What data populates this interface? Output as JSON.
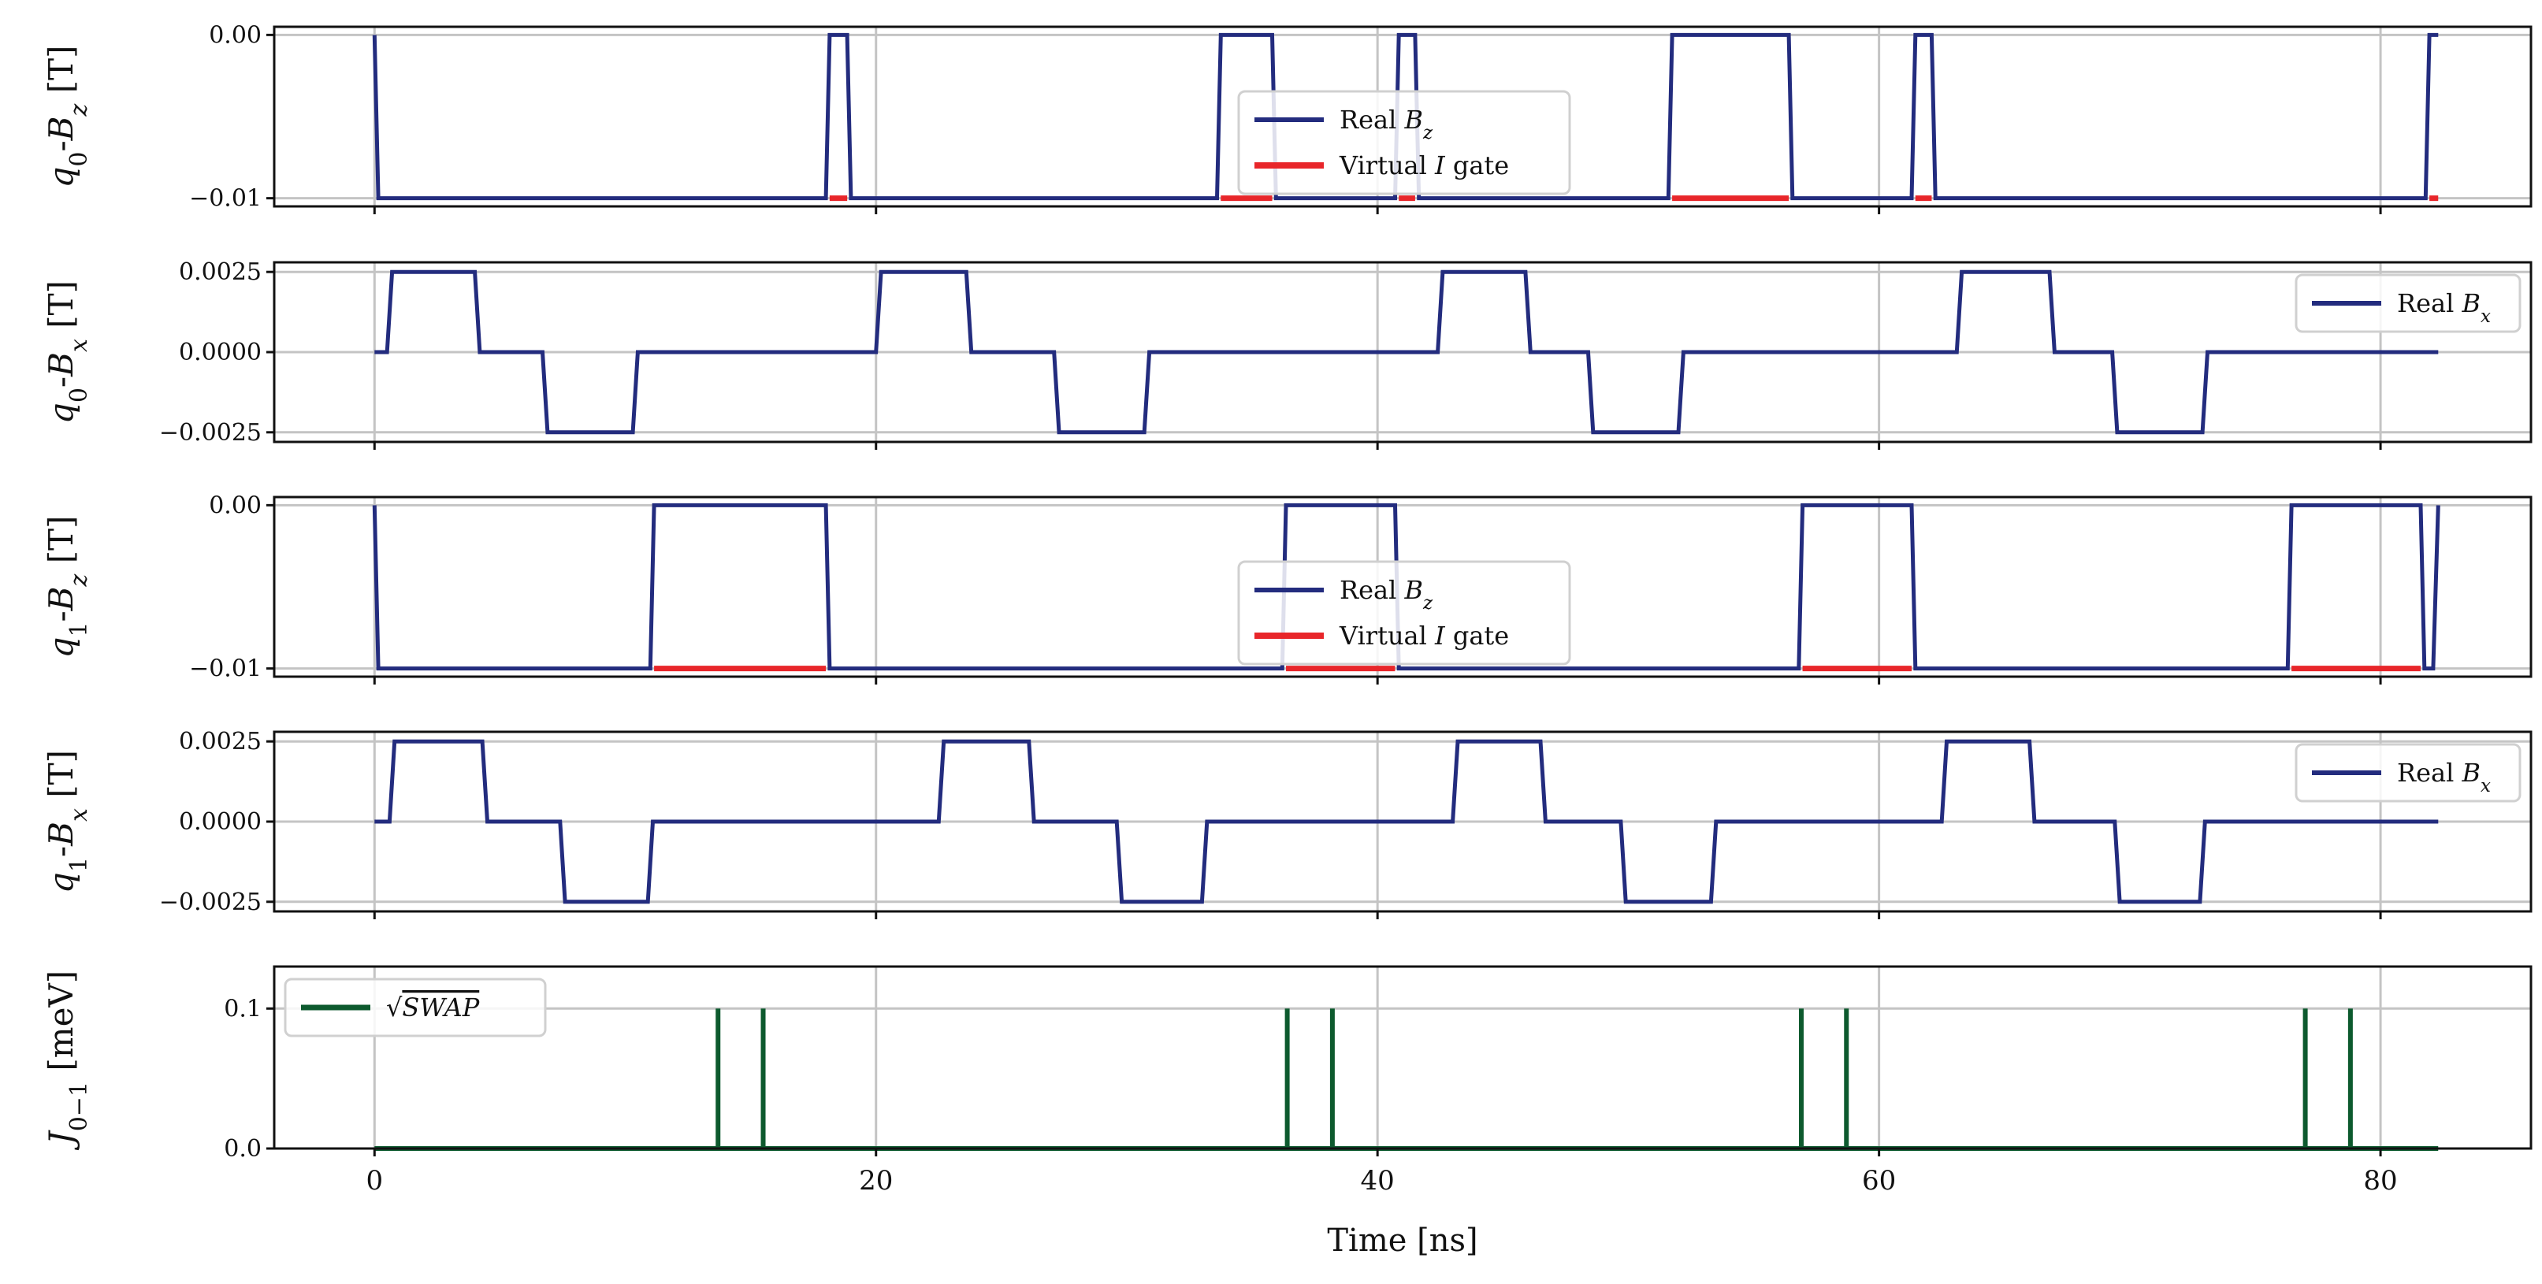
{
  "colors": {
    "real": "#232c7e",
    "virtual": "#e8262a",
    "swap": "#0d5a2e",
    "grid": "#c4c4c4",
    "frame": "#111111"
  },
  "chart_data": {
    "type": "line",
    "xlabel": "Time [ns]",
    "xlim": [
      -4,
      86
    ],
    "xticks": [
      0,
      20,
      40,
      60,
      80
    ],
    "xtick_labels": [
      "0",
      "20",
      "40",
      "60",
      "80"
    ],
    "panels": [
      {
        "id": "q0z",
        "ylabel": {
          "main": "q",
          "sub": "0",
          "mid": "-B",
          "sub2": "z",
          "unit": " [T]"
        },
        "ylim": [
          -0.0105,
          0.0005
        ],
        "yticks": [
          0.0,
          -0.01
        ],
        "ytick_labels": [
          "0.00",
          "−0.01"
        ],
        "legend": {
          "position": "center"
        },
        "series": [
          {
            "name": "Real B_z",
            "legend_label": {
              "main": "Real ",
              "ital": "B",
              "sub": "z"
            },
            "color": "real",
            "width": 5,
            "x": [
              0,
              0.15,
              18.0,
              18.15,
              18.85,
              19.0,
              33.6,
              33.75,
              35.8,
              35.95,
              40.7,
              40.85,
              41.5,
              41.65,
              51.6,
              51.75,
              56.4,
              56.55,
              61.3,
              61.45,
              62.1,
              62.25,
              81.8,
              81.95,
              82.3
            ],
            "y": [
              0,
              -0.01,
              -0.01,
              0,
              0,
              -0.01,
              -0.01,
              0,
              0,
              -0.01,
              -0.01,
              0,
              0,
              -0.01,
              -0.01,
              0,
              0,
              -0.01,
              -0.01,
              0,
              0,
              -0.01,
              -0.01,
              0,
              0
            ]
          },
          {
            "name": "Virtual I gate",
            "legend_label": {
              "main": "Virtual ",
              "ital": "I",
              "tail": " gate"
            },
            "color": "virtual",
            "width": 7,
            "segments": [
              [
                18.15,
                18.85
              ],
              [
                33.75,
                35.8
              ],
              [
                40.85,
                41.5
              ],
              [
                51.75,
                56.4
              ],
              [
                61.45,
                62.1
              ],
              [
                81.95,
                82.3
              ]
            ],
            "y": -0.01
          }
        ]
      },
      {
        "id": "q0x",
        "ylabel": {
          "main": "q",
          "sub": "0",
          "mid": "-B",
          "sub2": "x",
          "unit": " [T]"
        },
        "ylim": [
          -0.0028,
          0.0028
        ],
        "yticks": [
          0.0025,
          0.0,
          -0.0025
        ],
        "ytick_labels": [
          "0.0025",
          "0.0000",
          "−0.0025"
        ],
        "legend": {
          "position": "upper right"
        },
        "series": [
          {
            "name": "Real B_x",
            "legend_label": {
              "main": "Real ",
              "ital": "B",
              "sub": "x"
            },
            "color": "real",
            "width": 5,
            "x": [
              0,
              0.5,
              0.7,
              4.0,
              4.2,
              6.7,
              6.9,
              10.3,
              10.5,
              20.0,
              20.2,
              23.6,
              23.8,
              27.1,
              27.3,
              30.7,
              30.9,
              42.4,
              42.6,
              45.9,
              46.1,
              48.4,
              48.6,
              52.0,
              52.2,
              63.1,
              63.3,
              66.8,
              67.0,
              69.3,
              69.5,
              72.9,
              73.1,
              82.3
            ],
            "y": [
              0,
              0,
              0.0025,
              0.0025,
              0,
              0,
              -0.0025,
              -0.0025,
              0,
              0,
              0.0025,
              0.0025,
              0,
              0,
              -0.0025,
              -0.0025,
              0,
              0,
              0.0025,
              0.0025,
              0,
              0,
              -0.0025,
              -0.0025,
              0,
              0,
              0.0025,
              0.0025,
              0,
              0,
              -0.0025,
              -0.0025,
              0,
              0
            ]
          }
        ]
      },
      {
        "id": "q1z",
        "ylabel": {
          "main": "q",
          "sub": "1",
          "mid": "-B",
          "sub2": "z",
          "unit": " [T]"
        },
        "ylim": [
          -0.0105,
          0.0005
        ],
        "yticks": [
          0.0,
          -0.01
        ],
        "ytick_labels": [
          "0.00",
          "−0.01"
        ],
        "legend": {
          "position": "center"
        },
        "series": [
          {
            "name": "Real B_z",
            "legend_label": {
              "main": "Real ",
              "ital": "B",
              "sub": "z"
            },
            "color": "real",
            "width": 5,
            "x": [
              0,
              0.15,
              11.0,
              11.15,
              18.0,
              18.15,
              36.2,
              36.35,
              40.7,
              40.85,
              56.8,
              56.95,
              61.3,
              61.45,
              76.3,
              76.45,
              81.6,
              81.75,
              82.1,
              82.3
            ],
            "y": [
              0,
              -0.01,
              -0.01,
              0,
              0,
              -0.01,
              -0.01,
              0,
              0,
              -0.01,
              -0.01,
              0,
              0,
              -0.01,
              -0.01,
              0,
              0,
              -0.01,
              -0.01,
              0
            ]
          },
          {
            "name": "Virtual I gate",
            "legend_label": {
              "main": "Virtual ",
              "ital": "I",
              "tail": " gate"
            },
            "color": "virtual",
            "width": 7,
            "segments": [
              [
                11.15,
                18.0
              ],
              [
                36.35,
                40.7
              ],
              [
                56.95,
                61.3
              ],
              [
                76.45,
                81.6
              ]
            ],
            "y": -0.01
          }
        ]
      },
      {
        "id": "q1x",
        "ylabel": {
          "main": "q",
          "sub": "1",
          "mid": "-B",
          "sub2": "x",
          "unit": " [T]"
        },
        "ylim": [
          -0.0028,
          0.0028
        ],
        "yticks": [
          0.0025,
          0.0,
          -0.0025
        ],
        "ytick_labels": [
          "0.0025",
          "0.0000",
          "−0.0025"
        ],
        "legend": {
          "position": "upper right"
        },
        "series": [
          {
            "name": "Real B_x",
            "legend_label": {
              "main": "Real ",
              "ital": "B",
              "sub": "x"
            },
            "color": "real",
            "width": 5,
            "x": [
              0,
              0.6,
              0.8,
              4.3,
              4.5,
              7.4,
              7.6,
              10.9,
              11.1,
              22.5,
              22.7,
              26.1,
              26.3,
              29.6,
              29.8,
              33.0,
              33.2,
              43.0,
              43.2,
              46.5,
              46.7,
              49.7,
              49.9,
              53.3,
              53.5,
              62.5,
              62.7,
              66.0,
              66.2,
              69.4,
              69.6,
              72.8,
              73.0,
              82.3
            ],
            "y": [
              0,
              0,
              0.0025,
              0.0025,
              0,
              0,
              -0.0025,
              -0.0025,
              0,
              0,
              0.0025,
              0.0025,
              0,
              0,
              -0.0025,
              -0.0025,
              0,
              0,
              0.0025,
              0.0025,
              0,
              0,
              -0.0025,
              -0.0025,
              0,
              0,
              0.0025,
              0.0025,
              0,
              0,
              -0.0025,
              -0.0025,
              0,
              0
            ]
          }
        ]
      },
      {
        "id": "j01",
        "ylabel": {
          "main": "J",
          "sub": "0−1",
          "mid": "",
          "sub2": "",
          "unit": " [meV]"
        },
        "ylim": [
          0.0,
          0.13
        ],
        "yticks": [
          0.1,
          0.0
        ],
        "ytick_labels": [
          "0.1",
          "0.0"
        ],
        "legend": {
          "position": "upper left"
        },
        "series": [
          {
            "name": "√SWAP",
            "legend_label": {
              "sqrt": "SWAP"
            },
            "color": "swap",
            "width": 6,
            "baseline": [
              0,
              82.3
            ],
            "pulses": [
              13.7,
              15.5,
              36.4,
              38.2,
              56.9,
              58.7,
              77.0,
              78.8
            ],
            "pulse_height": 0.1,
            "pulse_width": 0.12
          }
        ]
      }
    ]
  }
}
